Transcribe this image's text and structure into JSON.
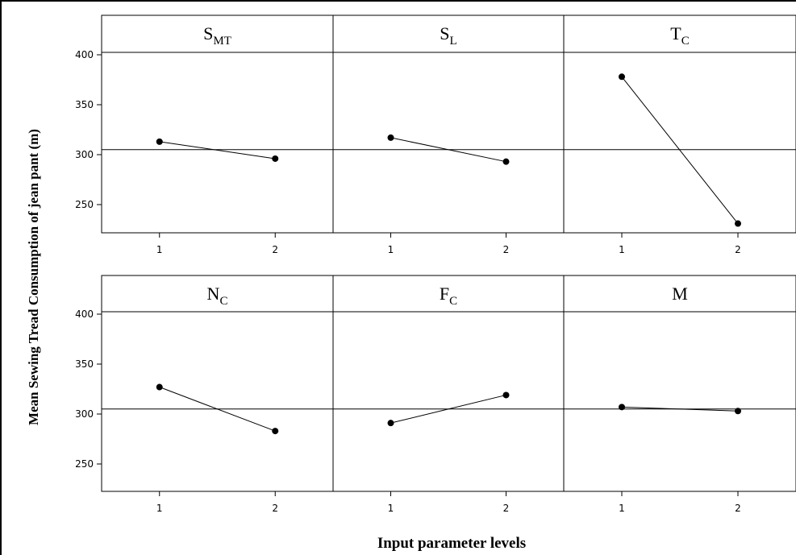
{
  "chart_data": {
    "type": "line",
    "ylabel": "Mean Sewing Tread Consumption of jean pant (m)",
    "xlabel": "Input parameter levels",
    "ylim": [
      220,
      435
    ],
    "yticks": [
      250,
      300,
      350,
      400
    ],
    "reference_line": 305,
    "categories": [
      "1",
      "2"
    ],
    "panels": [
      {
        "title_main": "S",
        "title_sub": "MT",
        "values": [
          313,
          296
        ]
      },
      {
        "title_main": "S",
        "title_sub": "L",
        "values": [
          317,
          293
        ]
      },
      {
        "title_main": "T",
        "title_sub": "C",
        "values": [
          378,
          231
        ]
      },
      {
        "title_main": "N",
        "title_sub": "C",
        "values": [
          327,
          283
        ]
      },
      {
        "title_main": "F",
        "title_sub": "C",
        "values": [
          291,
          319
        ]
      },
      {
        "title_main": "M",
        "title_sub": "",
        "values": [
          307,
          303
        ]
      }
    ]
  }
}
